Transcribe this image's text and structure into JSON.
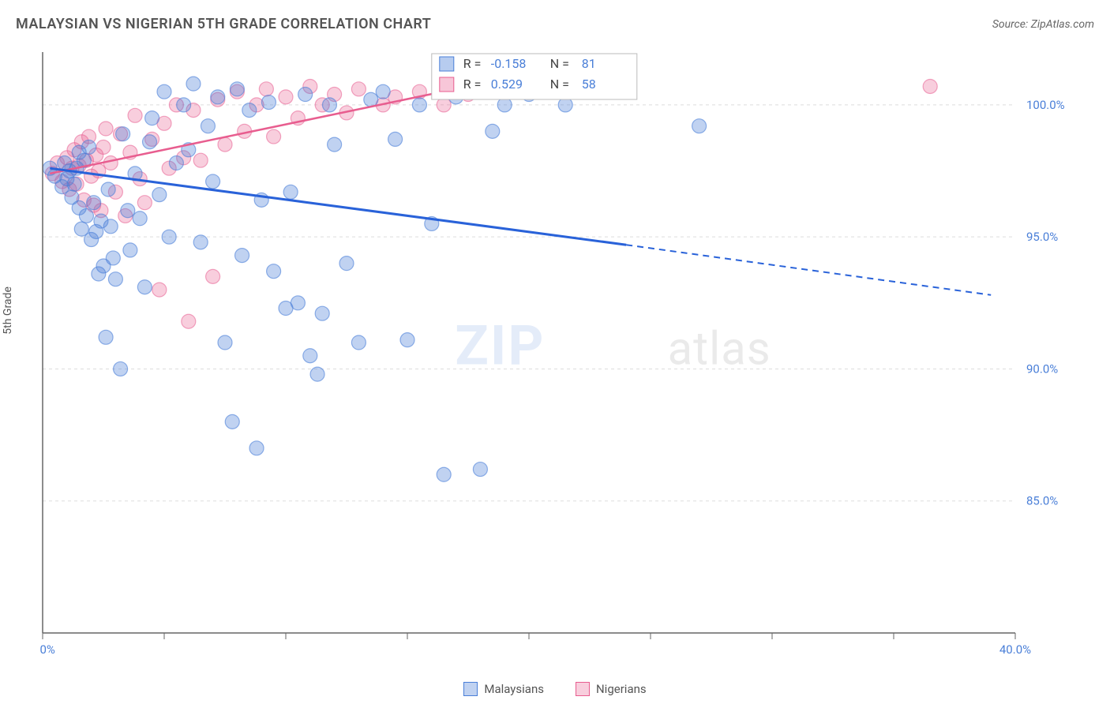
{
  "title": "MALAYSIAN VS NIGERIAN 5TH GRADE CORRELATION CHART",
  "source": "Source: ZipAtlas.com",
  "yaxis_label": "5th Grade",
  "watermark": {
    "part1": "ZIP",
    "part2": "atlas"
  },
  "chart": {
    "type": "scatter",
    "xlim": [
      0,
      40
    ],
    "ylim": [
      80,
      102
    ],
    "xticks": [
      0,
      5,
      10,
      15,
      20,
      25,
      30,
      35,
      40
    ],
    "xtick_labels": {
      "0": "0.0%",
      "40": "40.0%"
    },
    "yticks": [
      85,
      90,
      95,
      100
    ],
    "ytick_labels": [
      "85.0%",
      "90.0%",
      "95.0%",
      "100.0%"
    ],
    "grid_color": "#dddddd",
    "axis_color": "#666666",
    "background_color": "#ffffff",
    "marker_radius": 9,
    "series": {
      "malaysians": {
        "label": "Malaysians",
        "color": "#4a7fd8",
        "R": "-0.158",
        "N": "81",
        "trend": {
          "x1": 0.3,
          "y1": 97.6,
          "x2_solid": 24,
          "y2_solid": 94.7,
          "x2": 39,
          "y2": 92.8
        },
        "points": [
          [
            0.3,
            97.6
          ],
          [
            0.5,
            97.3
          ],
          [
            0.8,
            96.9
          ],
          [
            0.9,
            97.8
          ],
          [
            1.0,
            97.2
          ],
          [
            1.1,
            97.5
          ],
          [
            1.2,
            96.5
          ],
          [
            1.3,
            97.0
          ],
          [
            1.4,
            97.6
          ],
          [
            1.5,
            98.2
          ],
          [
            1.5,
            96.1
          ],
          [
            1.6,
            95.3
          ],
          [
            1.7,
            97.9
          ],
          [
            1.8,
            95.8
          ],
          [
            1.9,
            98.4
          ],
          [
            2.0,
            94.9
          ],
          [
            2.1,
            96.3
          ],
          [
            2.2,
            95.2
          ],
          [
            2.3,
            93.6
          ],
          [
            2.4,
            95.6
          ],
          [
            2.5,
            93.9
          ],
          [
            2.6,
            91.2
          ],
          [
            2.7,
            96.8
          ],
          [
            2.8,
            95.4
          ],
          [
            2.9,
            94.2
          ],
          [
            3.0,
            93.4
          ],
          [
            3.2,
            90.0
          ],
          [
            3.3,
            98.9
          ],
          [
            3.5,
            96.0
          ],
          [
            3.6,
            94.5
          ],
          [
            3.8,
            97.4
          ],
          [
            4.0,
            95.7
          ],
          [
            4.2,
            93.1
          ],
          [
            4.4,
            98.6
          ],
          [
            4.5,
            99.5
          ],
          [
            4.8,
            96.6
          ],
          [
            5.0,
            100.5
          ],
          [
            5.2,
            95.0
          ],
          [
            5.5,
            97.8
          ],
          [
            5.8,
            100.0
          ],
          [
            6.0,
            98.3
          ],
          [
            6.2,
            100.8
          ],
          [
            6.5,
            94.8
          ],
          [
            6.8,
            99.2
          ],
          [
            7.0,
            97.1
          ],
          [
            7.2,
            100.3
          ],
          [
            7.5,
            91.0
          ],
          [
            7.8,
            88.0
          ],
          [
            8.0,
            100.6
          ],
          [
            8.2,
            94.3
          ],
          [
            8.5,
            99.8
          ],
          [
            8.8,
            87.0
          ],
          [
            9.0,
            96.4
          ],
          [
            9.3,
            100.1
          ],
          [
            9.5,
            93.7
          ],
          [
            10.0,
            92.3
          ],
          [
            10.2,
            96.7
          ],
          [
            10.5,
            92.5
          ],
          [
            10.8,
            100.4
          ],
          [
            11.0,
            90.5
          ],
          [
            11.3,
            89.8
          ],
          [
            11.5,
            92.1
          ],
          [
            11.8,
            100.0
          ],
          [
            12.0,
            98.5
          ],
          [
            12.5,
            94.0
          ],
          [
            13.0,
            91.0
          ],
          [
            13.5,
            100.2
          ],
          [
            14.0,
            100.5
          ],
          [
            14.5,
            98.7
          ],
          [
            15.0,
            91.1
          ],
          [
            15.5,
            100.0
          ],
          [
            16.0,
            95.5
          ],
          [
            16.5,
            86.0
          ],
          [
            17.0,
            100.3
          ],
          [
            18.0,
            86.2
          ],
          [
            18.5,
            99.0
          ],
          [
            19.0,
            100.0
          ],
          [
            20.0,
            100.4
          ],
          [
            21.5,
            100.0
          ],
          [
            24.0,
            100.5
          ],
          [
            27.0,
            99.2
          ]
        ]
      },
      "nigerians": {
        "label": "Nigerians",
        "color": "#e85d8f",
        "R": "0.529",
        "N": "58",
        "trend": {
          "x1": 0.3,
          "y1": 97.4,
          "x2": 17.5,
          "y2": 100.7
        },
        "points": [
          [
            0.4,
            97.4
          ],
          [
            0.6,
            97.8
          ],
          [
            0.8,
            97.1
          ],
          [
            1.0,
            98.0
          ],
          [
            1.1,
            96.8
          ],
          [
            1.2,
            97.6
          ],
          [
            1.3,
            98.3
          ],
          [
            1.4,
            97.0
          ],
          [
            1.5,
            97.7
          ],
          [
            1.6,
            98.6
          ],
          [
            1.7,
            96.4
          ],
          [
            1.8,
            97.9
          ],
          [
            1.9,
            98.8
          ],
          [
            2.0,
            97.3
          ],
          [
            2.1,
            96.2
          ],
          [
            2.2,
            98.1
          ],
          [
            2.3,
            97.5
          ],
          [
            2.4,
            96.0
          ],
          [
            2.5,
            98.4
          ],
          [
            2.6,
            99.1
          ],
          [
            2.8,
            97.8
          ],
          [
            3.0,
            96.7
          ],
          [
            3.2,
            98.9
          ],
          [
            3.4,
            95.8
          ],
          [
            3.6,
            98.2
          ],
          [
            3.8,
            99.6
          ],
          [
            4.0,
            97.2
          ],
          [
            4.2,
            96.3
          ],
          [
            4.5,
            98.7
          ],
          [
            4.8,
            93.0
          ],
          [
            5.0,
            99.3
          ],
          [
            5.2,
            97.6
          ],
          [
            5.5,
            100.0
          ],
          [
            5.8,
            98.0
          ],
          [
            6.0,
            91.8
          ],
          [
            6.2,
            99.8
          ],
          [
            6.5,
            97.9
          ],
          [
            7.0,
            93.5
          ],
          [
            7.2,
            100.2
          ],
          [
            7.5,
            98.5
          ],
          [
            8.0,
            100.5
          ],
          [
            8.3,
            99.0
          ],
          [
            8.8,
            100.0
          ],
          [
            9.2,
            100.6
          ],
          [
            9.5,
            98.8
          ],
          [
            10.0,
            100.3
          ],
          [
            10.5,
            99.5
          ],
          [
            11.0,
            100.7
          ],
          [
            11.5,
            100.0
          ],
          [
            12.0,
            100.4
          ],
          [
            12.5,
            99.7
          ],
          [
            13.0,
            100.6
          ],
          [
            14.0,
            100.0
          ],
          [
            14.5,
            100.3
          ],
          [
            15.5,
            100.5
          ],
          [
            16.5,
            100.0
          ],
          [
            17.5,
            100.4
          ],
          [
            36.5,
            100.7
          ]
        ]
      }
    },
    "legend": {
      "position": "top-center",
      "rows": [
        {
          "swatch": "malaysians",
          "R_label": "R =",
          "R_val": "-0.158",
          "N_label": "N =",
          "N_val": "81"
        },
        {
          "swatch": "nigerians",
          "R_label": "R =",
          "R_val": "0.529",
          "N_label": "N =",
          "N_val": "58"
        }
      ]
    }
  },
  "bottom_legend": {
    "items": [
      {
        "key": "malaysians",
        "label": "Malaysians"
      },
      {
        "key": "nigerians",
        "label": "Nigerians"
      }
    ]
  }
}
